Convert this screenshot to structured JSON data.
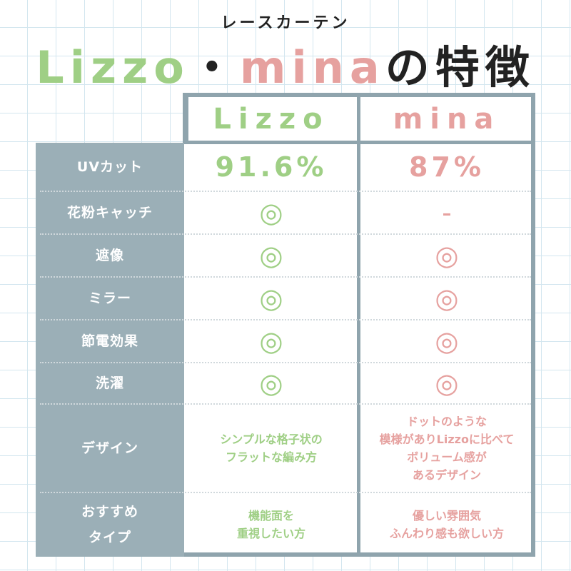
{
  "header": {
    "subtitle": "レースカーテン",
    "title": [
      "Lizzo",
      "・",
      "mina",
      "の特徴"
    ]
  },
  "table": {
    "columns": [
      "Lizzo",
      "mina"
    ],
    "rows": [
      {
        "label": [
          "UVカット"
        ],
        "cells": [
          [
            "91.6%"
          ],
          [
            "87%"
          ]
        ]
      },
      {
        "label": [
          "花粉キャッチ"
        ],
        "cells": [
          [
            "◎"
          ],
          [
            "-"
          ]
        ]
      },
      {
        "label": [
          "遮像"
        ],
        "cells": [
          [
            "◎"
          ],
          [
            "◎"
          ]
        ]
      },
      {
        "label": [
          "ミラー"
        ],
        "cells": [
          [
            "◎"
          ],
          [
            "◎"
          ]
        ]
      },
      {
        "label": [
          "節電効果"
        ],
        "cells": [
          [
            "◎"
          ],
          [
            "◎"
          ]
        ]
      },
      {
        "label": [
          "洗濯"
        ],
        "cells": [
          [
            "◎"
          ],
          [
            "◎"
          ]
        ]
      },
      {
        "label": [
          "デザイン"
        ],
        "cells": [
          [
            "シンプルな格子状の",
            "フラットな編み方"
          ],
          [
            "ドットのような",
            "模様がありLizzoに比べて",
            "ボリューム感が",
            "あるデザイン"
          ]
        ]
      },
      {
        "label": [
          "おすすめ",
          "タイプ"
        ],
        "cells": [
          [
            "機能面を",
            "重視したい方"
          ],
          [
            "優しい雰囲気",
            "ふんわり感も欲しい方"
          ]
        ]
      }
    ]
  }
}
